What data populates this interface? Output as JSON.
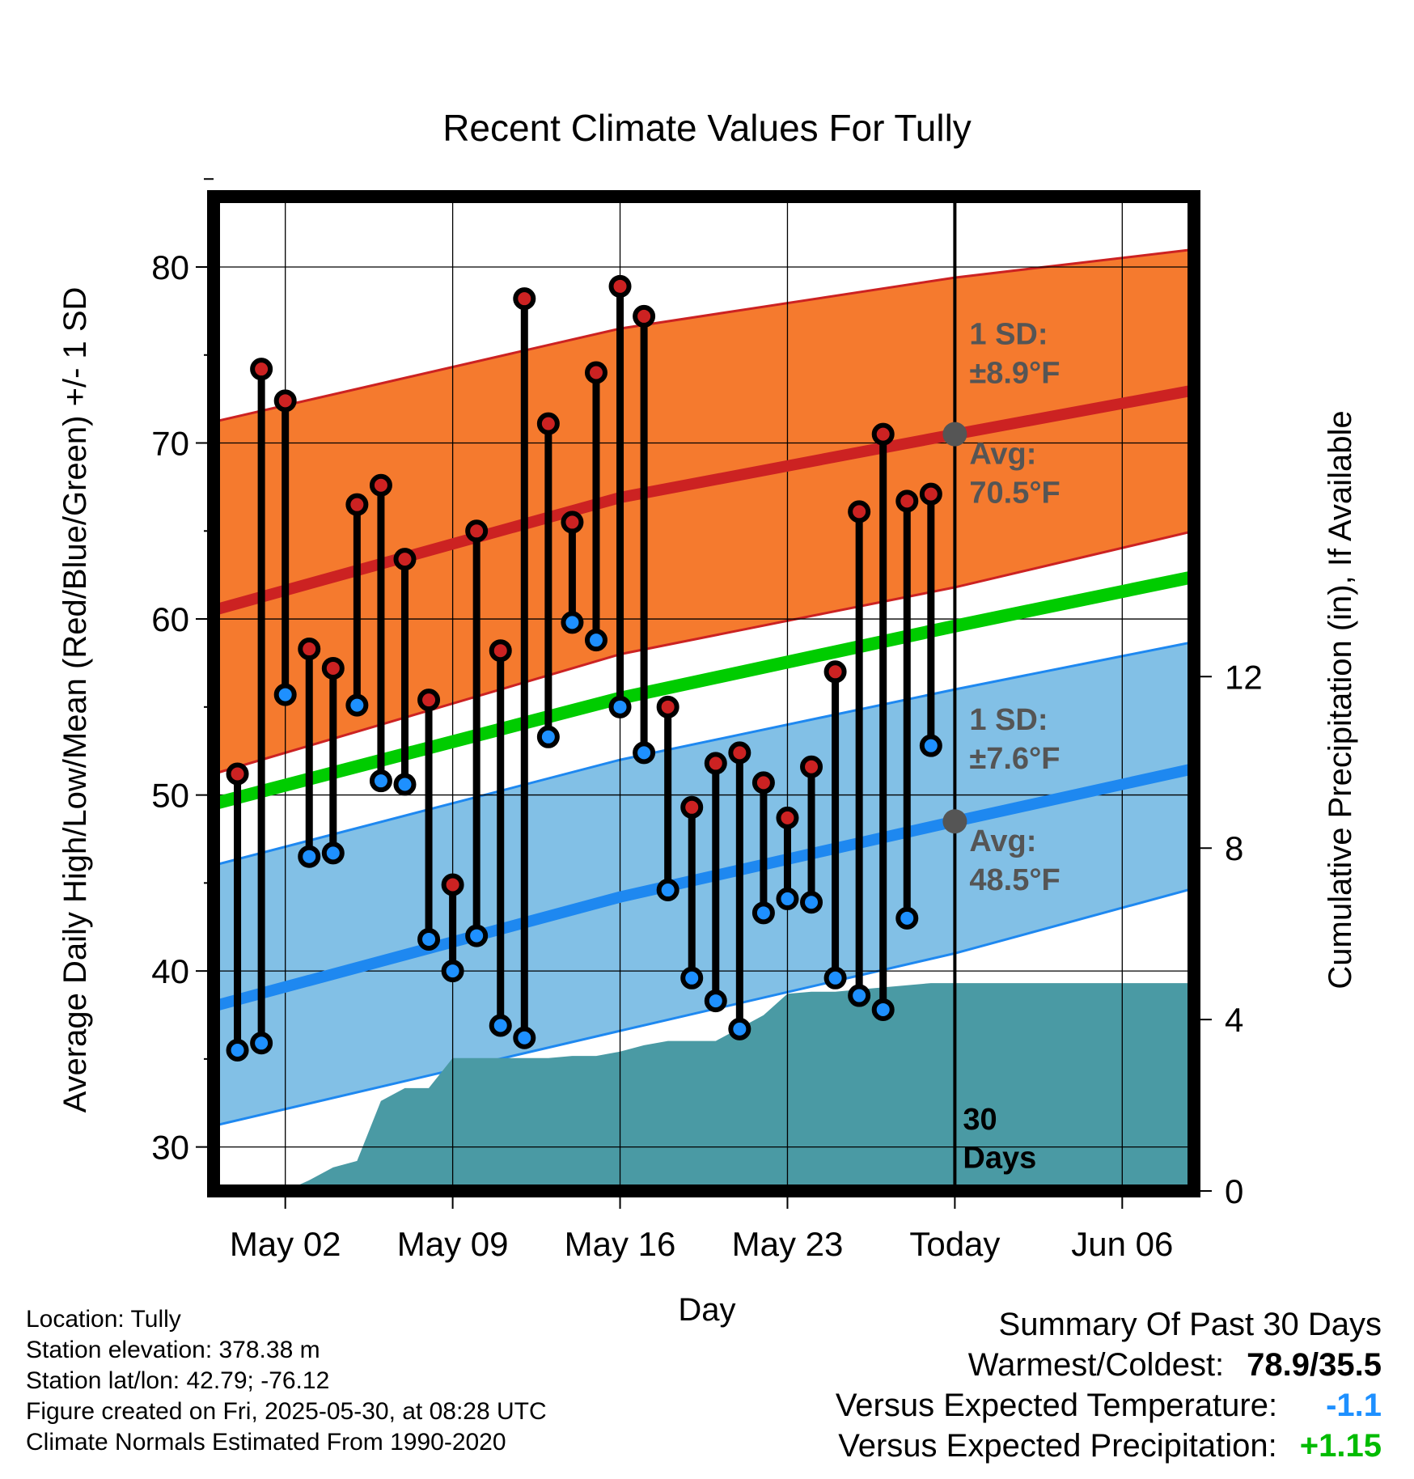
{
  "chart_data": {
    "type": "line",
    "title": "Recent Climate Values For Tully",
    "xlabel": "Day",
    "ylabel": "Average Daily High/Low/Mean (Red/Blue/Green) +/- 1 SD",
    "y2label": "Cumulative Precipitation (in), If Available",
    "x_range": [
      "2025-04-29",
      "2025-06-09"
    ],
    "ylim": [
      27.5,
      84
    ],
    "y2lim": [
      0,
      23.2
    ],
    "yticks": [
      30,
      40,
      50,
      60,
      70,
      80
    ],
    "y2ticks": [
      0,
      4,
      8,
      12
    ],
    "xticks": [
      {
        "date": "2025-05-02",
        "label": "May 02"
      },
      {
        "date": "2025-05-09",
        "label": "May 09"
      },
      {
        "date": "2025-05-16",
        "label": "May 16"
      },
      {
        "date": "2025-05-23",
        "label": "May 23"
      },
      {
        "date": "2025-05-30",
        "label": "Today"
      },
      {
        "date": "2025-06-06",
        "label": "Jun 06"
      }
    ],
    "today": "2025-05-30",
    "grid": true,
    "normals": {
      "dates": [
        "2025-04-29",
        "2025-05-16",
        "2025-05-30",
        "2025-06-09"
      ],
      "high_avg": [
        60.5,
        66.9,
        70.5,
        73.0
      ],
      "high_upper": [
        71.2,
        76.5,
        79.4,
        81.0
      ],
      "high_lower": [
        51.2,
        58.0,
        61.8,
        65.0
      ],
      "low_avg": [
        38.0,
        44.2,
        48.5,
        51.5
      ],
      "low_upper": [
        46.0,
        52.0,
        56.0,
        58.7
      ],
      "low_lower": [
        31.2,
        36.6,
        41.0,
        44.7
      ],
      "mean_avg": [
        49.5,
        55.5,
        59.6,
        62.4
      ]
    },
    "daily": {
      "dates": [
        "2025-04-30",
        "2025-05-01",
        "2025-05-02",
        "2025-05-03",
        "2025-05-04",
        "2025-05-05",
        "2025-05-06",
        "2025-05-07",
        "2025-05-08",
        "2025-05-09",
        "2025-05-10",
        "2025-05-11",
        "2025-05-12",
        "2025-05-13",
        "2025-05-14",
        "2025-05-15",
        "2025-05-16",
        "2025-05-17",
        "2025-05-18",
        "2025-05-19",
        "2025-05-20",
        "2025-05-21",
        "2025-05-22",
        "2025-05-23",
        "2025-05-24",
        "2025-05-25",
        "2025-05-26",
        "2025-05-27",
        "2025-05-28",
        "2025-05-29"
      ],
      "highs": [
        51.2,
        74.2,
        72.4,
        58.3,
        57.2,
        66.5,
        67.6,
        63.4,
        55.4,
        44.9,
        65.0,
        58.2,
        78.2,
        71.1,
        65.5,
        74.0,
        78.9,
        77.2,
        55.0,
        49.3,
        51.8,
        52.4,
        50.7,
        48.7,
        51.6,
        57.0,
        66.1,
        70.5,
        66.7,
        67.1
      ],
      "lows": [
        35.5,
        35.9,
        55.7,
        46.5,
        46.7,
        55.1,
        50.8,
        50.6,
        41.8,
        40.0,
        42.0,
        36.9,
        36.2,
        53.3,
        59.8,
        58.8,
        55.0,
        52.4,
        44.6,
        39.6,
        38.3,
        36.7,
        43.3,
        44.1,
        43.9,
        39.6,
        38.6,
        37.8,
        43.0,
        52.8
      ]
    },
    "precip": {
      "dates": [
        "2025-05-02",
        "2025-05-03",
        "2025-05-04",
        "2025-05-05",
        "2025-05-06",
        "2025-05-07",
        "2025-05-08",
        "2025-05-09",
        "2025-05-10",
        "2025-05-11",
        "2025-05-12",
        "2025-05-13",
        "2025-05-14",
        "2025-05-15",
        "2025-05-16",
        "2025-05-17",
        "2025-05-18",
        "2025-05-19",
        "2025-05-20",
        "2025-05-21",
        "2025-05-22",
        "2025-05-23",
        "2025-05-24",
        "2025-05-25",
        "2025-05-26",
        "2025-05-27",
        "2025-05-28",
        "2025-05-29",
        "2025-05-30",
        "2025-06-09"
      ],
      "cumulative": [
        0.0,
        0.25,
        0.55,
        0.7,
        2.1,
        2.4,
        2.4,
        3.1,
        3.1,
        3.1,
        3.1,
        3.1,
        3.15,
        3.15,
        3.25,
        3.4,
        3.5,
        3.5,
        3.5,
        3.8,
        4.1,
        4.6,
        4.65,
        4.65,
        4.7,
        4.75,
        4.8,
        4.85,
        4.85,
        4.85
      ]
    },
    "annotations": {
      "high_sd": "1 SD:",
      "high_sd_value": "±8.9°F",
      "high_avg": "Avg:",
      "high_avg_value": "70.5°F",
      "low_sd": "1 SD:",
      "low_sd_value": "±7.6°F",
      "low_avg": "Avg:",
      "low_avg_value": "48.5°F",
      "days_count": "30",
      "days_word": "Days"
    },
    "colors": {
      "high_band": "#f57a2e",
      "high_line": "#cc2222",
      "low_band": "#82c0e6",
      "low_line": "#1e88f0",
      "mean_line": "#00cc00",
      "precip": "#4a9aa4",
      "high_marker": "#cc2222",
      "low_marker": "#1e90ff",
      "today_marker": "#555555"
    }
  },
  "info": {
    "location": "Location: Tully",
    "elevation": "Station elevation: 378.38 m",
    "latlon": "Station lat/lon: 42.79; -76.12",
    "created": "Figure created on Fri, 2025-05-30, at 08:28 UTC",
    "normals": "Climate Normals Estimated From 1990-2020"
  },
  "summary": {
    "heading": "Summary Of Past 30 Days",
    "warmest_label": "Warmest/Coldest:",
    "warmest_value": "78.9/35.5",
    "temp_label": "Versus Expected Temperature:",
    "temp_value": "-1.1",
    "temp_color": "#1e90ff",
    "precip_label": "Versus Expected Precipitation:",
    "precip_value": "+1.15",
    "precip_color": "#00bb00"
  }
}
